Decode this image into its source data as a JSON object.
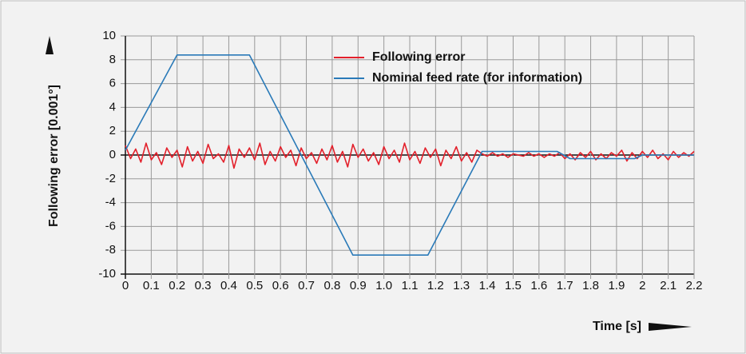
{
  "chart_data": {
    "type": "line",
    "ylabel": "Following error [0.001°]",
    "xlabel": "Time [s]",
    "xlim": [
      0,
      2.2
    ],
    "ylim": [
      -10,
      10
    ],
    "xticks": [
      0,
      0.1,
      0.2,
      0.3,
      0.4,
      0.5,
      0.6,
      0.7,
      0.8,
      0.9,
      {
        "value": 1,
        "label": "1.0"
      },
      1.1,
      1.2,
      1.3,
      1.4,
      1.5,
      1.6,
      1.7,
      1.8,
      1.9,
      2,
      2.1,
      2.2
    ],
    "yticks": [
      -10,
      -8,
      -6,
      -4,
      -2,
      0,
      2,
      4,
      6,
      8,
      10
    ],
    "grid": true,
    "legend": "top",
    "series": [
      {
        "name": "Following error",
        "color": "#e3202b",
        "x": [
          0,
          0.02,
          0.04,
          0.06,
          0.08,
          0.1,
          0.12,
          0.14,
          0.16,
          0.18,
          0.2,
          0.22,
          0.24,
          0.26,
          0.28,
          0.3,
          0.32,
          0.34,
          0.36,
          0.38,
          0.4,
          0.42,
          0.44,
          0.46,
          0.48,
          0.5,
          0.52,
          0.54,
          0.56,
          0.58,
          0.6,
          0.62,
          0.64,
          0.66,
          0.68,
          0.7,
          0.72,
          0.74,
          0.76,
          0.78,
          0.8,
          0.82,
          0.84,
          0.86,
          0.88,
          0.9,
          0.92,
          0.94,
          0.96,
          0.98,
          1,
          1.02,
          1.04,
          1.06,
          1.08,
          1.1,
          1.12,
          1.14,
          1.16,
          1.18,
          1.2,
          1.22,
          1.24,
          1.26,
          1.28,
          1.3,
          1.32,
          1.34,
          1.36,
          1.38,
          1.4,
          1.42,
          1.44,
          1.46,
          1.48,
          1.5,
          1.52,
          1.54,
          1.56,
          1.58,
          1.6,
          1.62,
          1.64,
          1.66,
          1.68,
          1.7,
          1.72,
          1.74,
          1.76,
          1.78,
          1.8,
          1.82,
          1.84,
          1.86,
          1.88,
          1.9,
          1.92,
          1.94,
          1.96,
          1.98,
          2,
          2.02,
          2.04,
          2.06,
          2.08,
          2.1,
          2.12,
          2.14,
          2.16,
          2.18,
          2.2
        ],
        "values": [
          0.8,
          -0.3,
          0.5,
          -0.6,
          1.0,
          -0.4,
          0.2,
          -0.8,
          0.6,
          -0.2,
          0.4,
          -1.0,
          0.7,
          -0.5,
          0.3,
          -0.7,
          0.9,
          -0.3,
          0.1,
          -0.6,
          0.8,
          -1.1,
          0.5,
          -0.2,
          0.6,
          -0.4,
          1.0,
          -0.8,
          0.3,
          -0.5,
          0.7,
          -0.2,
          0.4,
          -0.9,
          0.6,
          -0.3,
          0.2,
          -0.7,
          0.5,
          -0.4,
          0.8,
          -0.6,
          0.3,
          -1.0,
          0.9,
          -0.2,
          0.5,
          -0.5,
          0.2,
          -0.8,
          0.7,
          -0.3,
          0.4,
          -0.6,
          1.0,
          -0.4,
          0.3,
          -0.7,
          0.6,
          -0.2,
          0.5,
          -0.9,
          0.4,
          -0.3,
          0.7,
          -0.5,
          0.2,
          -0.6,
          0.4,
          0.1,
          -0.1,
          0.2,
          -0.1,
          0.1,
          -0.2,
          0.1,
          0.0,
          -0.1,
          0.2,
          -0.1,
          0.1,
          -0.2,
          0.1,
          -0.1,
          0.2,
          -0.3,
          0.1,
          -0.4,
          0.2,
          -0.2,
          0.3,
          -0.4,
          0.1,
          -0.3,
          0.2,
          -0.1,
          0.4,
          -0.5,
          0.2,
          -0.3,
          0.3,
          -0.2,
          0.4,
          -0.3,
          0.1,
          -0.4,
          0.3,
          -0.2,
          0.2,
          -0.1,
          0.3
        ]
      },
      {
        "name": "Nominal feed rate (for information)",
        "color": "#2a7ab8",
        "x": [
          0,
          0.2,
          0.48,
          0.88,
          1.17,
          1.38,
          1.67,
          1.72,
          1.97,
          2.0,
          2.2
        ],
        "values": [
          0.4,
          8.4,
          8.4,
          -8.4,
          -8.4,
          0.3,
          0.3,
          -0.3,
          -0.3,
          0,
          0
        ]
      }
    ]
  }
}
